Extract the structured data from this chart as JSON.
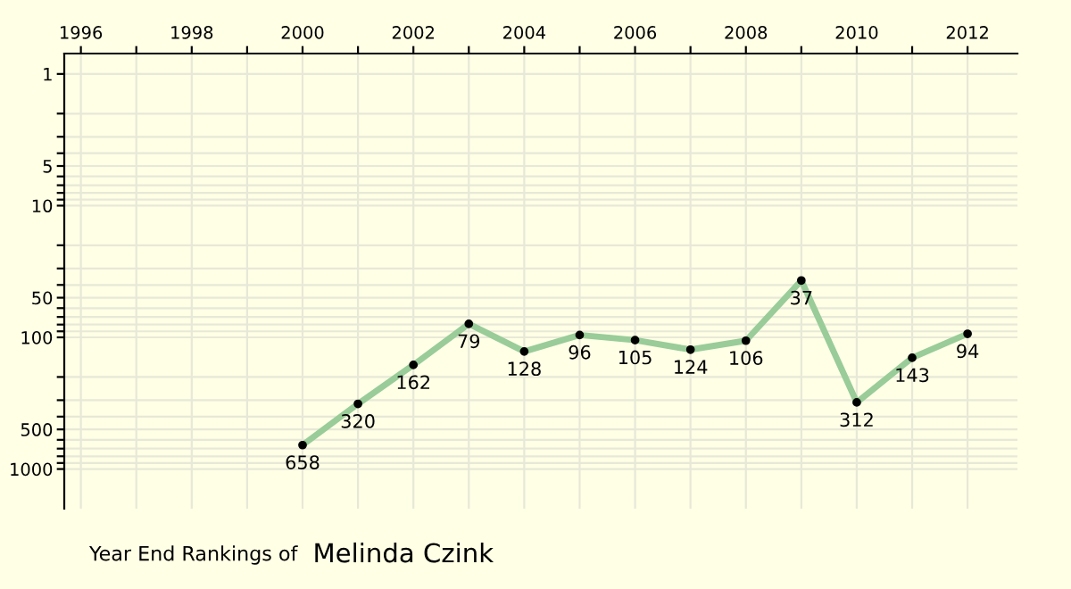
{
  "chart_data": {
    "type": "line",
    "title": "Year End Rankings of",
    "subtitle": "Melinda Czink",
    "x": [
      2000,
      2001,
      2002,
      2003,
      2004,
      2005,
      2006,
      2007,
      2008,
      2009,
      2010,
      2011,
      2012
    ],
    "series": [
      {
        "color": "#99cc99",
        "values": [
          658,
          320,
          162,
          79,
          128,
          96,
          105,
          124,
          106,
          37,
          312,
          143,
          94
        ]
      }
    ],
    "data_labels": true,
    "log": true,
    "marker": "circle",
    "line_style": "solid",
    "grid": true,
    "xlim": [
      1995.7,
      2012.9
    ],
    "xticks": [
      1996,
      {
        "value": 1997,
        "label": null
      },
      1998,
      {
        "value": 1999,
        "label": null
      },
      2000,
      {
        "value": 2001,
        "label": null
      },
      2002,
      {
        "value": 2003,
        "label": null
      },
      2004,
      {
        "value": 2005,
        "label": null
      },
      2006,
      {
        "value": 2007,
        "label": null
      },
      2008,
      {
        "value": 2009,
        "label": null
      },
      2010,
      {
        "value": 2011,
        "label": null
      },
      2012
    ],
    "ylim": [
      2000,
      0.7
    ],
    "yticks": [
      1,
      {
        "value": 2,
        "label": null
      },
      {
        "value": 3,
        "label": null
      },
      {
        "value": 4,
        "label": null
      },
      5,
      {
        "value": 6,
        "label": null
      },
      {
        "value": 7,
        "label": null
      },
      {
        "value": 8,
        "label": null
      },
      {
        "value": 9,
        "label": null
      },
      10,
      {
        "value": 20,
        "label": null
      },
      {
        "value": 30,
        "label": null
      },
      {
        "value": 40,
        "label": null
      },
      50,
      {
        "value": 60,
        "label": null
      },
      {
        "value": 70,
        "label": null
      },
      {
        "value": 80,
        "label": null
      },
      {
        "value": 90,
        "label": null
      },
      100,
      {
        "value": 200,
        "label": null
      },
      {
        "value": 300,
        "label": null
      },
      {
        "value": 400,
        "label": null
      },
      500,
      {
        "value": 600,
        "label": null
      },
      {
        "value": 700,
        "label": null
      },
      {
        "value": 800,
        "label": null
      },
      {
        "value": 900,
        "label": null
      },
      1000
    ]
  }
}
